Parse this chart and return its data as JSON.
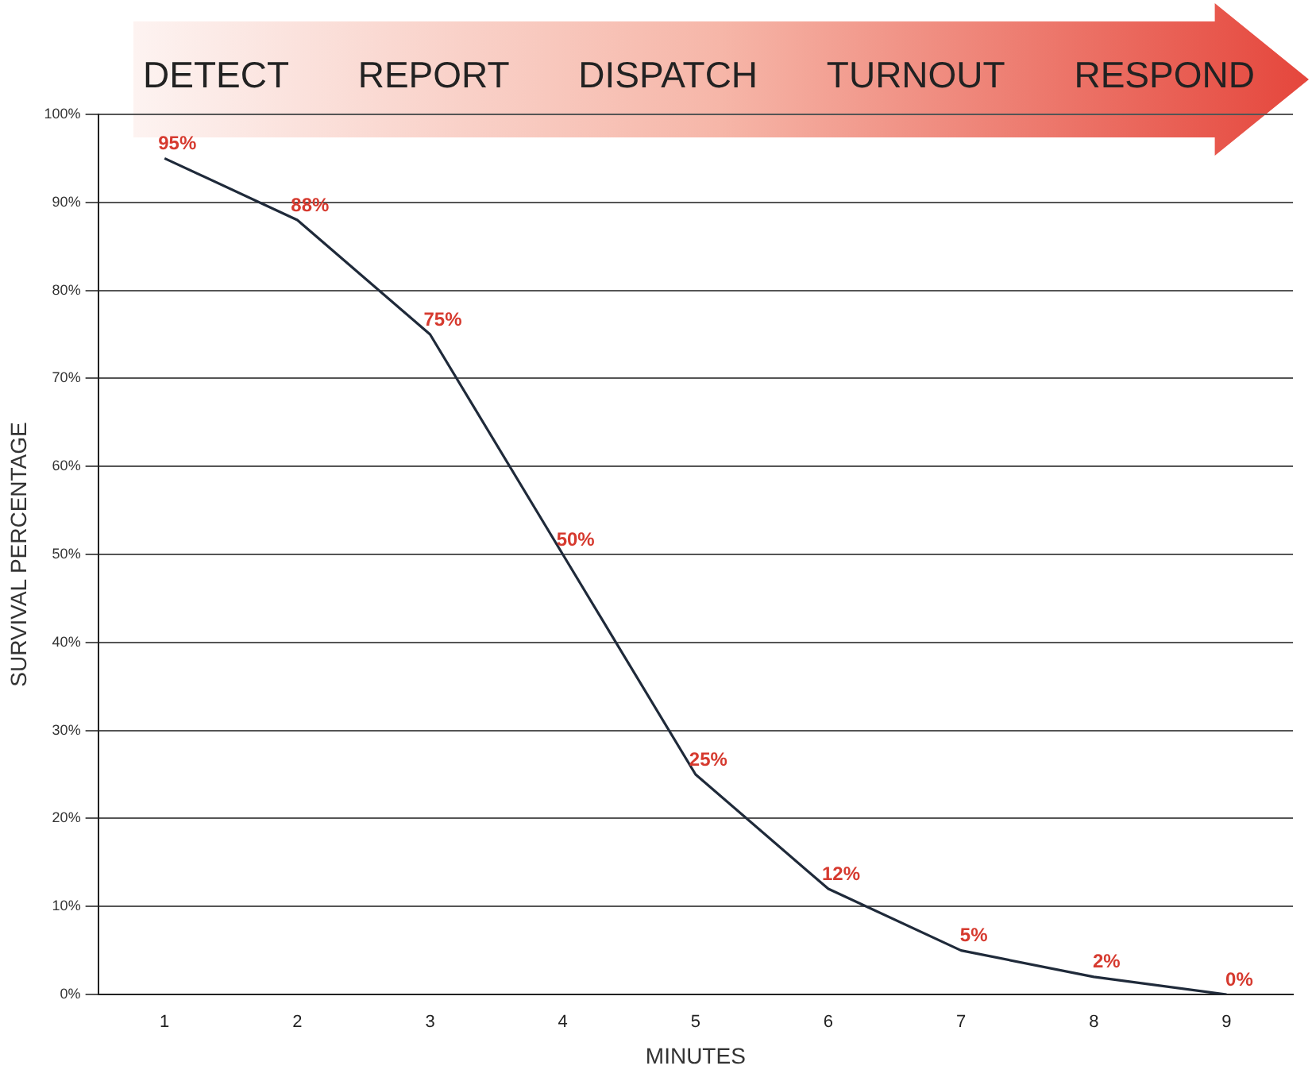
{
  "chart_data": {
    "type": "line",
    "xlabel": "MINUTES",
    "ylabel": "SURVIVAL PERCENTAGE",
    "annotations": [
      "DETECT",
      "REPORT",
      "DISPATCH",
      "TURNOUT",
      "RESPOND"
    ],
    "x": [
      1,
      2,
      3,
      4,
      5,
      6,
      7,
      8,
      9
    ],
    "series": [
      {
        "color": "#1f2a3a",
        "values": [
          95,
          88,
          75,
          50,
          25,
          12,
          5,
          2,
          0
        ],
        "value_labels": [
          "95%",
          "88%",
          "75%",
          "50%",
          "25%",
          "12%",
          "5%",
          "2%",
          "0%"
        ]
      }
    ],
    "xlim": [
      0.5,
      9.5
    ],
    "xticks": [
      1,
      2,
      3,
      4,
      5,
      6,
      7,
      8,
      9
    ],
    "ylim": [
      0,
      100
    ],
    "yticks": [
      {
        "value": 0,
        "label": "0%"
      },
      {
        "value": 10,
        "label": "10%"
      },
      {
        "value": 20,
        "label": "20%"
      },
      {
        "value": 30,
        "label": "30%"
      },
      {
        "value": 40,
        "label": "40%"
      },
      {
        "value": 50,
        "label": "50%"
      },
      {
        "value": 60,
        "label": "60%"
      },
      {
        "value": 70,
        "label": "70%"
      },
      {
        "value": 80,
        "label": "80%"
      },
      {
        "value": 90,
        "label": "90%"
      },
      {
        "value": 100,
        "label": "100%"
      }
    ],
    "grid": "y",
    "legend": false,
    "marker": "none",
    "line_style": "solid"
  }
}
